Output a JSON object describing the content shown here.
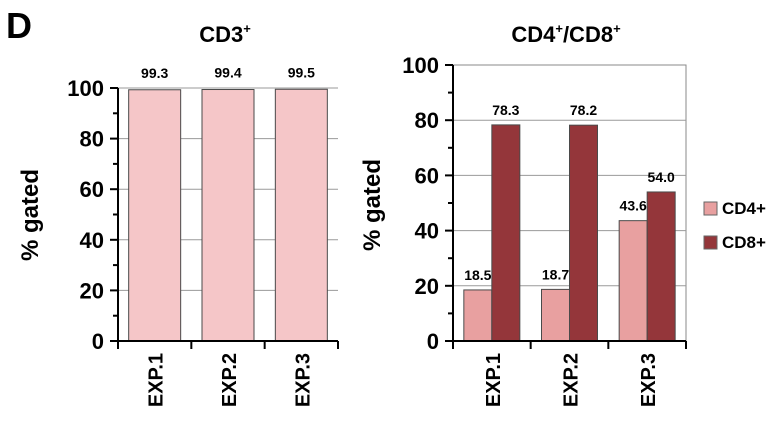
{
  "panel_label": "D",
  "colors": {
    "cd3": "#f5c6c8",
    "cd4": "#e8a0a0",
    "cd8": "#94363a"
  },
  "chart_data": [
    {
      "type": "bar",
      "title": "CD3",
      "title_superscript": "+",
      "ylabel": "% gated",
      "categories": [
        "EXP.1",
        "EXP.2",
        "EXP.3"
      ],
      "values": [
        99.3,
        99.4,
        99.5
      ],
      "value_labels": [
        "99.3",
        "99.4",
        "99.5"
      ],
      "ylim": [
        0,
        100
      ],
      "y_ticks": [
        "0",
        "20",
        "40",
        "60",
        "80",
        "100"
      ],
      "grid": true
    },
    {
      "type": "bar",
      "title_parts": [
        "CD4",
        "+",
        "/CD8",
        "+"
      ],
      "ylabel": "% gated",
      "categories": [
        "EXP.1",
        "EXP.2",
        "EXP.3"
      ],
      "series": [
        {
          "name": "CD4+",
          "values": [
            18.5,
            18.7,
            43.6
          ],
          "labels": [
            "18.5",
            "18.7",
            "43.6"
          ]
        },
        {
          "name": "CD8+",
          "values": [
            78.3,
            78.2,
            54.0
          ],
          "labels": [
            "78.3",
            "78.2",
            "54.0"
          ]
        }
      ],
      "ylim": [
        0,
        100
      ],
      "y_ticks": [
        "0",
        "20",
        "40",
        "60",
        "80",
        "100"
      ],
      "grid": true,
      "legend": "right"
    }
  ]
}
